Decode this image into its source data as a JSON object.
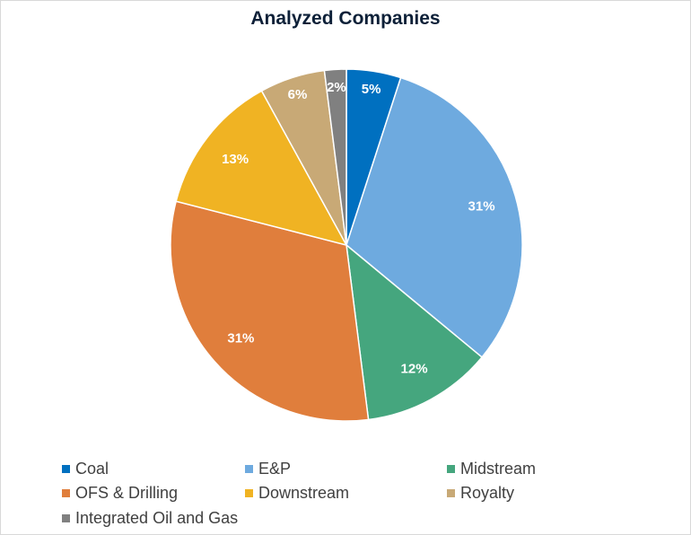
{
  "chart_data": {
    "type": "pie",
    "title": "Analyzed Companies",
    "start": "top",
    "direction": "clockwise",
    "legend_position": "bottom",
    "slices": [
      {
        "name": "Coal",
        "value": 5,
        "label": "5%",
        "color": "#0070c0"
      },
      {
        "name": "E&P",
        "value": 31,
        "label": "31%",
        "color": "#6eaadf"
      },
      {
        "name": "Midstream",
        "value": 12,
        "label": "12%",
        "color": "#45a67e"
      },
      {
        "name": "OFS & Drilling",
        "value": 31,
        "label": "31%",
        "color": "#e07e3c"
      },
      {
        "name": "Downstream",
        "value": 13,
        "label": "13%",
        "color": "#f0b323"
      },
      {
        "name": "Royalty",
        "value": 6,
        "label": "6%",
        "color": "#c8a976"
      },
      {
        "name": "Integrated Oil and Gas",
        "value": 2,
        "label": "2%",
        "color": "#808080"
      }
    ]
  }
}
